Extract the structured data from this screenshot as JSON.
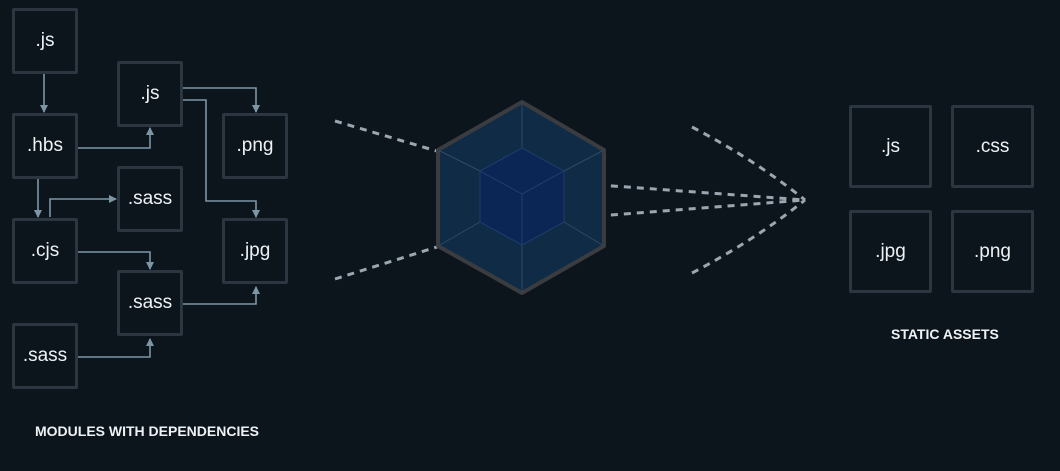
{
  "modules": {
    "js_top": ".js",
    "hbs": ".hbs",
    "cjs": ".cjs",
    "sass_left": ".sass",
    "js_mid": ".js",
    "sass_upper": ".sass",
    "sass_lower": ".sass",
    "png": ".png",
    "jpg": ".jpg",
    "caption": "MODULES WITH DEPENDENCIES"
  },
  "assets": {
    "js": ".js",
    "css": ".css",
    "jpg": ".jpg",
    "png": ".png",
    "caption": "STATIC ASSETS"
  },
  "colors": {
    "background": "#0d151c",
    "box_border": "#2b3640",
    "arrow": "#7d96a6",
    "dashed": "#9aa7b1",
    "cube_outline": "#3a3c40",
    "cube_outer_fill": "#0f2b46",
    "cube_inner_fill": "#0b2555"
  }
}
